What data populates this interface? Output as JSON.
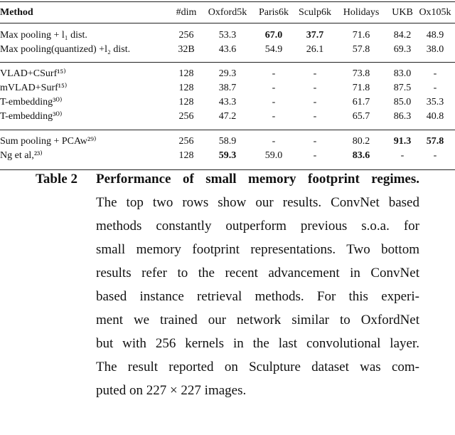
{
  "table": {
    "header": [
      "Method",
      "#dim",
      "Oxford5k",
      "Paris6k",
      "Sculp6k",
      "Holidays",
      "UKB",
      "Ox105k"
    ],
    "groups": [
      {
        "rows": [
          [
            "Max pooling + l₁ dist.",
            "256",
            "53.3",
            "67.0",
            "37.7",
            "71.6",
            "84.2",
            "48.9"
          ],
          [
            "Max pooling(quantized) +l₂ dist.",
            "32B",
            "43.6",
            "54.9",
            "26.1",
            "57.8",
            "69.3",
            "38.0"
          ]
        ],
        "bold": [
          [
            0,
            3
          ],
          [
            0,
            4
          ]
        ]
      },
      {
        "rows": [
          [
            "VLAD+CSurf¹⁵⁾",
            "128",
            "29.3",
            "-",
            "-",
            "73.8",
            "83.0",
            "-"
          ],
          [
            "mVLAD+Surf¹⁵⁾",
            "128",
            "38.7",
            "-",
            "-",
            "71.8",
            "87.5",
            "-"
          ],
          [
            "T-embedding³⁰⁾",
            "128",
            "43.3",
            "-",
            "-",
            "61.7",
            "85.0",
            "35.3"
          ],
          [
            "T-embedding³⁰⁾",
            "256",
            "47.2",
            "-",
            "-",
            "65.7",
            "86.3",
            "40.8"
          ]
        ],
        "bold": []
      },
      {
        "rows": [
          [
            "Sum pooling + PCAw²⁹⁾",
            "256",
            "58.9",
            "-",
            "-",
            "80.2",
            "91.3",
            "57.8"
          ],
          [
            "Ng et al,²³⁾",
            "128",
            "59.3",
            "59.0",
            "-",
            "83.6",
            "-",
            "-"
          ]
        ],
        "bold": [
          [
            0,
            6
          ],
          [
            0,
            7
          ],
          [
            1,
            2
          ],
          [
            1,
            5
          ]
        ]
      }
    ]
  },
  "caption": {
    "label": "Table 2",
    "lines": [
      "Performance of small memory footprint regimes.",
      "The top two rows show our results. ConvNet based",
      "methods constantly outperform previous s.o.a. for",
      "small memory footprint representations. Two bottom",
      "results refer to the recent advancement in ConvNet",
      "based instance retrieval methods. For this experi-",
      "ment we trained our network similar to OxfordNet",
      "but with 256 kernels in the last convolutional layer.",
      "The result reported on Sculpture dataset was com-",
      "puted on 227 × 227 images."
    ]
  }
}
